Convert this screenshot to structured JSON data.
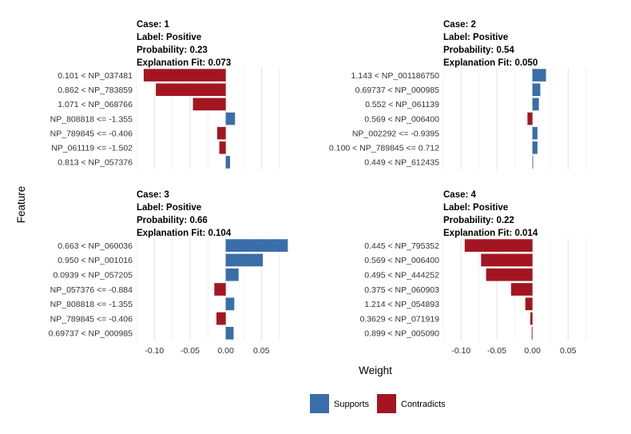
{
  "chart_data": {
    "type": "bar",
    "orientation": "horizontal",
    "facets": "2x2",
    "xlabel": "Weight",
    "ylabel": "Feature",
    "xlim": [
      -0.125,
      0.09
    ],
    "xticks": [
      -0.1,
      -0.05,
      0.0,
      0.05
    ],
    "xtick_labels": [
      "-0.10",
      "-0.05",
      "0.00",
      "0.05"
    ],
    "grid": true,
    "legend": {
      "position": "bottom",
      "entries": [
        {
          "label": "Supports",
          "color": "#3a6ea8"
        },
        {
          "label": "Contradicts",
          "color": "#a31621"
        }
      ]
    },
    "panels": [
      {
        "title_lines": [
          "Case: 1",
          "Label: Positive",
          "Probability: 0.23",
          "Explanation Fit: 0.073"
        ],
        "bars": [
          {
            "feature": "0.101 < NP_037481",
            "weight": -0.115
          },
          {
            "feature": "0.862 < NP_783859",
            "weight": -0.098
          },
          {
            "feature": "1.071 < NP_068766",
            "weight": -0.046
          },
          {
            "feature": "NP_808818 <= -1.355",
            "weight": 0.013
          },
          {
            "feature": "NP_789845 <= -0.406",
            "weight": -0.012
          },
          {
            "feature": "NP_061119 <= -1.502",
            "weight": -0.009
          },
          {
            "feature": "0.813 < NP_057376",
            "weight": 0.006
          }
        ]
      },
      {
        "title_lines": [
          "Case: 2",
          "Label: Positive",
          "Probability: 0.54",
          "Explanation Fit: 0.050"
        ],
        "bars": [
          {
            "feature": "1.143 < NP_001186750",
            "weight": 0.019
          },
          {
            "feature": "0.69737 < NP_000985",
            "weight": 0.011
          },
          {
            "feature": "0.552 < NP_061139",
            "weight": 0.009
          },
          {
            "feature": "0.569 < NP_006400",
            "weight": -0.007
          },
          {
            "feature": "NP_002292 <= -0.9395",
            "weight": 0.007
          },
          {
            "feature": "0.100 < NP_789845 <= 0.712",
            "weight": 0.007
          },
          {
            "feature": "0.449 < NP_612435",
            "weight": 0.001
          }
        ]
      },
      {
        "title_lines": [
          "Case: 3",
          "Label: Positive",
          "Probability: 0.66",
          "Explanation Fit: 0.104"
        ],
        "bars": [
          {
            "feature": "0.663 < NP_060036",
            "weight": 0.087
          },
          {
            "feature": "0.950 < NP_001016",
            "weight": 0.052
          },
          {
            "feature": "0.0939 < NP_057205",
            "weight": 0.018
          },
          {
            "feature": "NP_057376 <= -0.884",
            "weight": -0.016
          },
          {
            "feature": "NP_808818 <= -1.355",
            "weight": 0.012
          },
          {
            "feature": "NP_789845 <= -0.406",
            "weight": -0.013
          },
          {
            "feature": "0.69737 < NP_000985",
            "weight": 0.011
          }
        ]
      },
      {
        "title_lines": [
          "Case: 4",
          "Label: Positive",
          "Probability: 0.22",
          "Explanation Fit: 0.014"
        ],
        "bars": [
          {
            "feature": "0.445 < NP_795352",
            "weight": -0.095
          },
          {
            "feature": "0.569 < NP_006400",
            "weight": -0.072
          },
          {
            "feature": "0.495 < NP_444252",
            "weight": -0.065
          },
          {
            "feature": "0.375 < NP_060903",
            "weight": -0.03
          },
          {
            "feature": "1.214 < NP_054893",
            "weight": -0.01
          },
          {
            "feature": "0.3629 < NP_071919",
            "weight": -0.003
          },
          {
            "feature": "0.899 < NP_005090",
            "weight": -0.001
          }
        ]
      }
    ]
  }
}
